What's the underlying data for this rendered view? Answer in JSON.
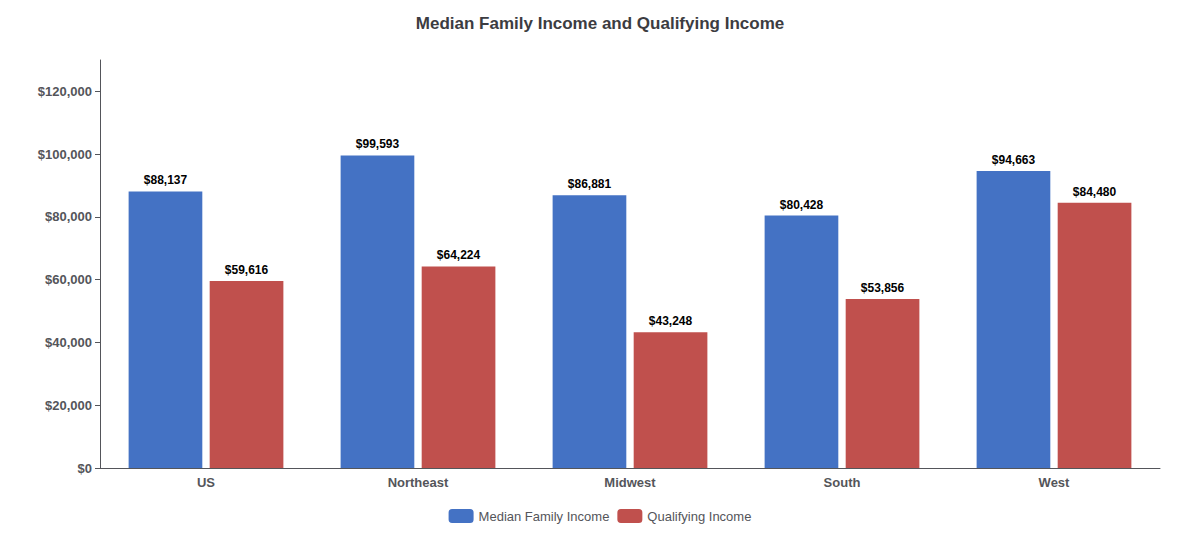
{
  "chart_data": {
    "type": "bar",
    "title": "Median Family Income and Qualifying Income",
    "categories": [
      "US",
      "Northeast",
      "Midwest",
      "South",
      "West"
    ],
    "series": [
      {
        "name": "Median Family Income",
        "color": "#4472C4",
        "values": [
          88137,
          99593,
          86881,
          80428,
          94663
        ],
        "value_labels": [
          "$88,137",
          "$99,593",
          "$86,881",
          "$80,428",
          "$94,663"
        ]
      },
      {
        "name": "Qualifying Income",
        "color": "#C0504D",
        "values": [
          59616,
          64224,
          43248,
          53856,
          84480
        ],
        "value_labels": [
          "$59,616",
          "$64,224",
          "$43,248",
          "$53,856",
          "$84,480"
        ]
      }
    ],
    "ylim": [
      0,
      130000
    ],
    "yticks": [
      {
        "value": 0,
        "label": "$0"
      },
      {
        "value": 20000,
        "label": "$20,000"
      },
      {
        "value": 40000,
        "label": "$40,000"
      },
      {
        "value": 60000,
        "label": "$60,000"
      },
      {
        "value": 80000,
        "label": "$80,000"
      },
      {
        "value": 100000,
        "label": "$100,000"
      },
      {
        "value": 120000,
        "label": "$120,000"
      }
    ],
    "grid": false,
    "legend": "bottom",
    "data_labels": true
  }
}
